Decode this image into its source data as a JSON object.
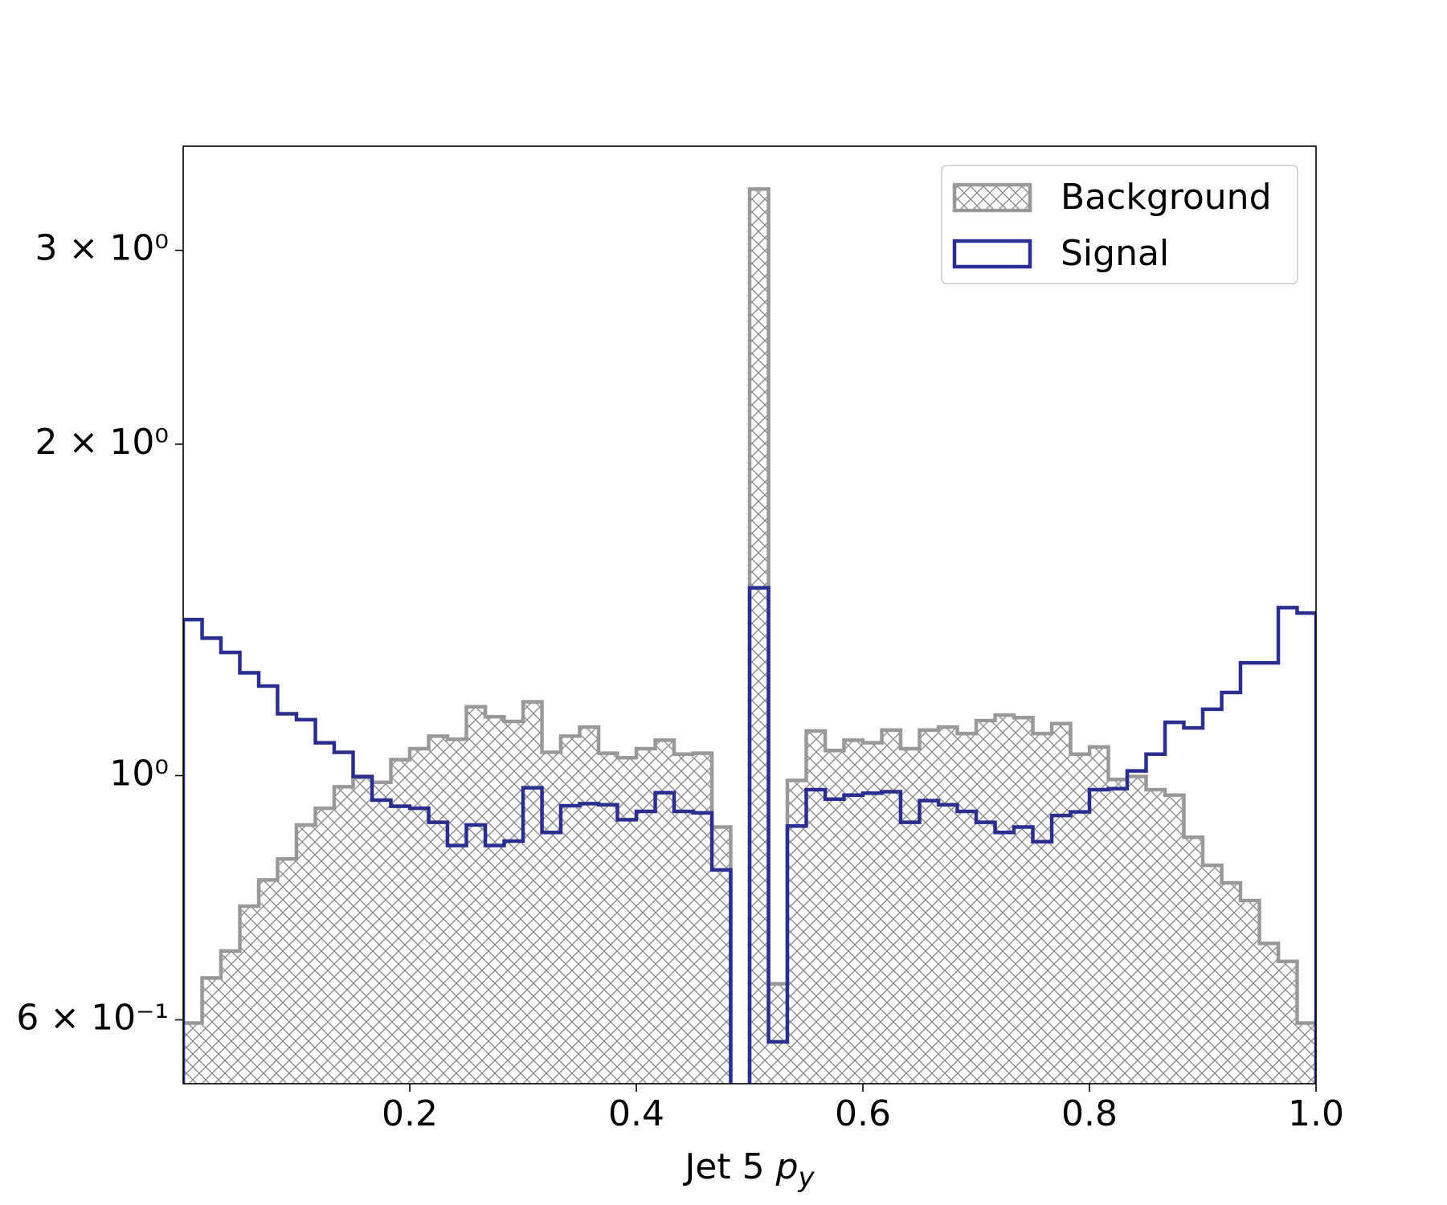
{
  "chart_data": {
    "type": "histogram",
    "xlabel": "Jet 5 $p_y$",
    "bins": [
      0,
      0.0167,
      0.0333,
      0.05,
      0.0667,
      0.0833,
      0.1,
      0.1167,
      0.1333,
      0.15,
      0.1667,
      0.1833,
      0.2,
      0.2167,
      0.2333,
      0.25,
      0.2667,
      0.2833,
      0.3,
      0.3167,
      0.3333,
      0.35,
      0.3667,
      0.3833,
      0.4,
      0.4167,
      0.4333,
      0.45,
      0.4667,
      0.4833,
      0.5,
      0.5167,
      0.5333,
      0.55,
      0.5667,
      0.5833,
      0.6,
      0.6167,
      0.6333,
      0.65,
      0.6667,
      0.6833,
      0.7,
      0.7167,
      0.7333,
      0.75,
      0.7667,
      0.7833,
      0.8,
      0.8167,
      0.8333,
      0.85,
      0.8667,
      0.8833,
      0.9,
      0.9167,
      0.9333,
      0.95,
      0.9667,
      0.9833,
      1.0
    ],
    "series": [
      {
        "name": "Background",
        "color": "#999999",
        "hatch": "xx",
        "values": [
          0.596,
          0.655,
          0.693,
          0.761,
          0.804,
          0.84,
          0.902,
          0.934,
          0.977,
          0.996,
          0.986,
          1.034,
          1.058,
          1.086,
          1.079,
          1.155,
          1.131,
          1.12,
          1.167,
          1.05,
          1.086,
          1.107,
          1.048,
          1.038,
          1.058,
          1.077,
          1.046,
          1.048,
          0.898,
          0,
          3.41,
          0.647,
          0.99,
          1.098,
          1.054,
          1.077,
          1.071,
          1.1,
          1.058,
          1.1,
          1.107,
          1.092,
          1.122,
          1.135,
          1.129,
          1.092,
          1.115,
          1.046,
          1.062,
          0.992,
          0.998,
          0.971,
          0.96,
          0.879,
          0.829,
          0.799,
          0.77,
          0.704,
          0.678,
          0.596
        ]
      },
      {
        "name": "Signal",
        "color": "#2a2f8f",
        "values": [
          1.386,
          1.333,
          1.294,
          1.24,
          1.206,
          1.138,
          1.124,
          1.071,
          1.05,
          0.998,
          0.95,
          0.938,
          0.934,
          0.907,
          0.864,
          0.902,
          0.864,
          0.872,
          0.975,
          0.888,
          0.939,
          0.943,
          0.941,
          0.912,
          0.928,
          0.965,
          0.928,
          0.925,
          0.821,
          0,
          1.481,
          0.573,
          0.9,
          0.971,
          0.952,
          0.96,
          0.964,
          0.967,
          0.907,
          0.949,
          0.941,
          0.928,
          0.907,
          0.888,
          0.898,
          0.871,
          0.92,
          0.927,
          0.971,
          0.973,
          1.01,
          1.046,
          1.118,
          1.105,
          1.149,
          1.19,
          1.266,
          1.266,
          1.421,
          1.405
        ]
      }
    ],
    "xlim": [
      0,
      1.0
    ],
    "xticks": [
      0.2,
      0.4,
      0.6,
      0.8,
      {
        "value": 1.0,
        "label": "1.0"
      }
    ],
    "ylim": [
      0.525,
      3.73
    ],
    "ylog": true,
    "yticks": [
      {
        "value": 0.6,
        "label": "6 × 10⁻¹"
      },
      {
        "value": 1,
        "label": "10⁰"
      },
      {
        "value": 2,
        "label": "2 × 10⁰"
      },
      {
        "value": 3,
        "label": "3 × 10⁰"
      }
    ],
    "legend": "upper right"
  }
}
